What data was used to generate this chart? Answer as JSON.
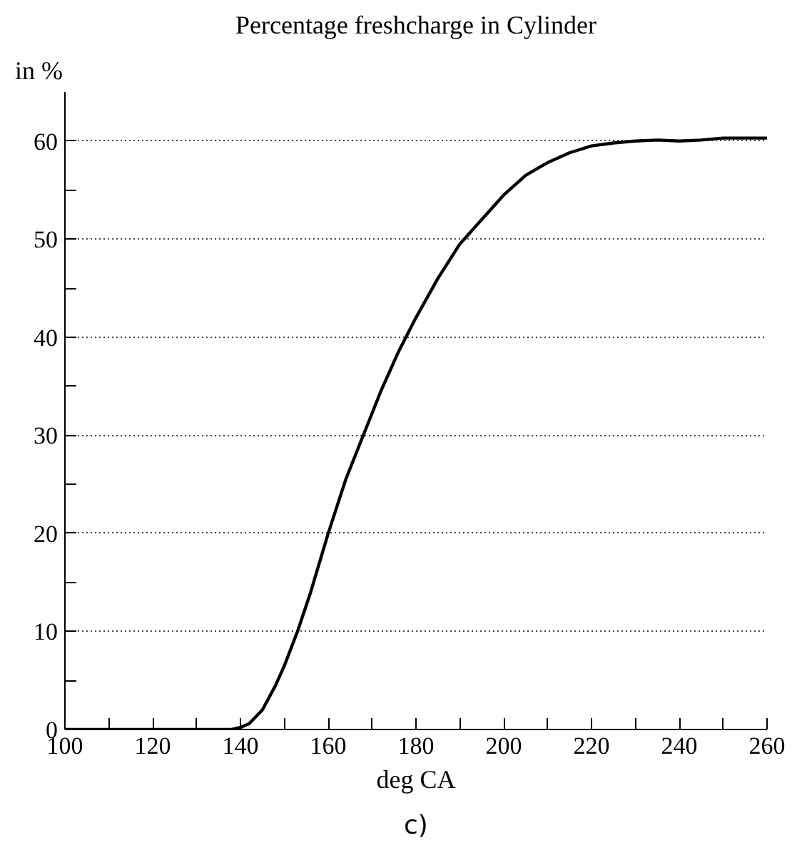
{
  "chart_data": {
    "type": "line",
    "title": "Percentage freshcharge in Cylinder",
    "xlabel": "deg CA",
    "ylabel": "in %",
    "annotations": [
      "c)"
    ],
    "x": [
      100,
      110,
      120,
      130,
      138,
      140,
      142,
      145,
      148,
      150,
      153,
      156,
      160,
      164,
      168,
      172,
      176,
      180,
      185,
      190,
      195,
      200,
      205,
      210,
      215,
      220,
      225,
      230,
      235,
      240,
      245,
      250,
      255,
      260
    ],
    "series": [
      {
        "color": "#000000",
        "values": [
          0,
          0,
          0,
          0,
          0,
          0.2,
          0.6,
          2,
          4.5,
          6.5,
          10,
          14,
          20,
          25.5,
          30,
          34.5,
          38.5,
          42,
          46,
          49.5,
          52,
          54.5,
          56.5,
          57.8,
          58.8,
          59.5,
          59.8,
          60,
          60.1,
          60,
          60.1,
          60.3,
          60.3,
          60.3
        ]
      }
    ],
    "xlim": [
      100,
      260
    ],
    "ylim": [
      0,
      65
    ],
    "xticks": [
      100,
      {
        "value": 110,
        "label": null
      },
      120,
      {
        "value": 130,
        "label": null
      },
      140,
      {
        "value": 150,
        "label": null
      },
      160,
      {
        "value": 170,
        "label": null
      },
      180,
      {
        "value": 190,
        "label": null
      },
      200,
      {
        "value": 210,
        "label": null
      },
      220,
      {
        "value": 230,
        "label": null
      },
      240,
      {
        "value": 250,
        "label": null
      },
      260
    ],
    "yticks": [
      0,
      {
        "value": 5,
        "label": null
      },
      10,
      {
        "value": 15,
        "label": null
      },
      20,
      {
        "value": 25,
        "label": null
      },
      30,
      {
        "value": 35,
        "label": null
      },
      40,
      {
        "value": 45,
        "label": null
      },
      50,
      {
        "value": 55,
        "label": null
      },
      60
    ],
    "grid": "y",
    "marker": "none",
    "line_style": "solid"
  }
}
